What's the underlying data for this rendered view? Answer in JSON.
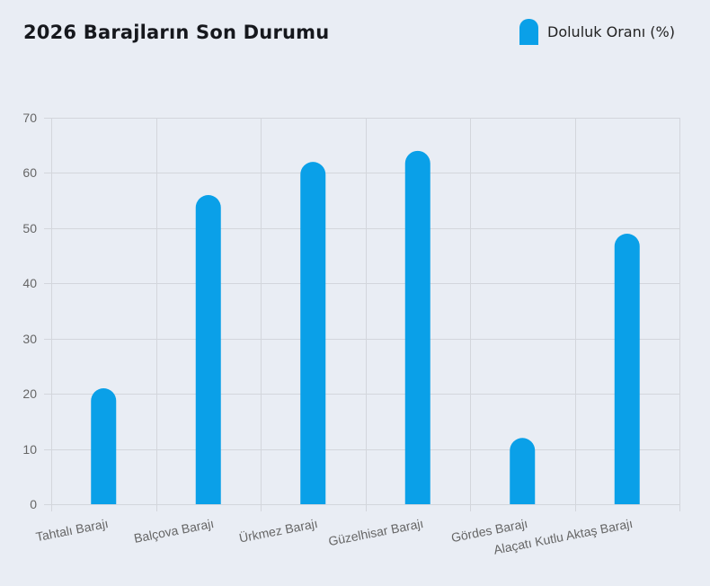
{
  "title": "2026 Barajların Son Durumu",
  "legend": {
    "label": "Doluluk Oranı (%)",
    "color": "#0aa0e8"
  },
  "colors": {
    "bar": "#0aa0e8",
    "grid": "#d3d6dc",
    "background": "#e9edf4",
    "tick_text": "#666666"
  },
  "chart_data": {
    "type": "bar",
    "title": "2026 Barajların Son Durumu",
    "xlabel": "",
    "ylabel": "",
    "categories": [
      "Tahtalı Barajı",
      "Balçova Barajı",
      "Ürkmez Barajı",
      "Güzelhisar Barajı",
      "Gördes Barajı",
      "Alaçatı Kutlu Aktaş Barajı"
    ],
    "series": [
      {
        "name": "Doluluk Oranı (%)",
        "values": [
          21,
          56,
          62,
          64,
          12,
          49
        ]
      }
    ],
    "ylim": [
      0,
      70
    ],
    "yticks": [
      0,
      10,
      20,
      30,
      40,
      50,
      60,
      70
    ],
    "grid": true,
    "legend_position": "top-right"
  }
}
